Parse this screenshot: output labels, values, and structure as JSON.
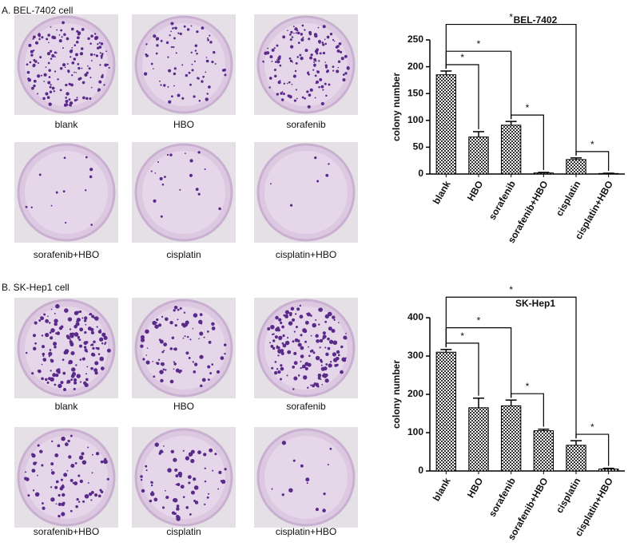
{
  "panels": [
    {
      "label": "A. BEL-7402 cell",
      "images": [
        "blank",
        "HBO",
        "sorafenib",
        "sorafenib+HBO",
        "cisplatin",
        "cisplatin+HBO"
      ]
    },
    {
      "label": "B. SK-Hep1 cell",
      "images": [
        "blank",
        "HBO",
        "sorafenib",
        "sorafenib+HBO",
        "cisplatin",
        "cisplatin+HBO"
      ]
    }
  ],
  "chart_data": [
    {
      "type": "bar",
      "title": "BEL-7402",
      "y_label": "colony number",
      "categories": [
        "blank",
        "HBO",
        "sorafenib",
        "sorafenib+HBO",
        "cisplatin",
        "cisplatin+HBO"
      ],
      "values": [
        185,
        69,
        91,
        2,
        27,
        1
      ],
      "errors": [
        7,
        10,
        7,
        1,
        3,
        0.5
      ],
      "ylim": [
        0,
        250
      ],
      "yticks": [
        0,
        50,
        100,
        150,
        200,
        250
      ],
      "significance": [
        {
          "pair": [
            0,
            1
          ],
          "label": "*"
        },
        {
          "pair": [
            0,
            2
          ],
          "label": "*"
        },
        {
          "pair": [
            0,
            4
          ],
          "label": "*"
        },
        {
          "pair": [
            2,
            3
          ],
          "label": "*"
        },
        {
          "pair": [
            4,
            5
          ],
          "label": "*"
        }
      ]
    },
    {
      "type": "bar",
      "title": "SK-Hep1",
      "y_label": "colony number",
      "categories": [
        "blank",
        "HBO",
        "sorafenib",
        "sorafenib+HBO",
        "cisplatin",
        "cisplatin+HBO"
      ],
      "values": [
        310,
        165,
        170,
        105,
        67,
        5
      ],
      "errors": [
        7,
        25,
        15,
        4,
        12,
        2
      ],
      "ylim": [
        0,
        400
      ],
      "yticks": [
        0,
        100,
        200,
        300,
        400
      ],
      "significance": [
        {
          "pair": [
            0,
            1
          ],
          "label": "*"
        },
        {
          "pair": [
            0,
            2
          ],
          "label": "*"
        },
        {
          "pair": [
            0,
            4
          ],
          "label": "*"
        },
        {
          "pair": [
            2,
            3
          ],
          "label": "*"
        },
        {
          "pair": [
            4,
            5
          ],
          "label": "*"
        }
      ]
    }
  ]
}
